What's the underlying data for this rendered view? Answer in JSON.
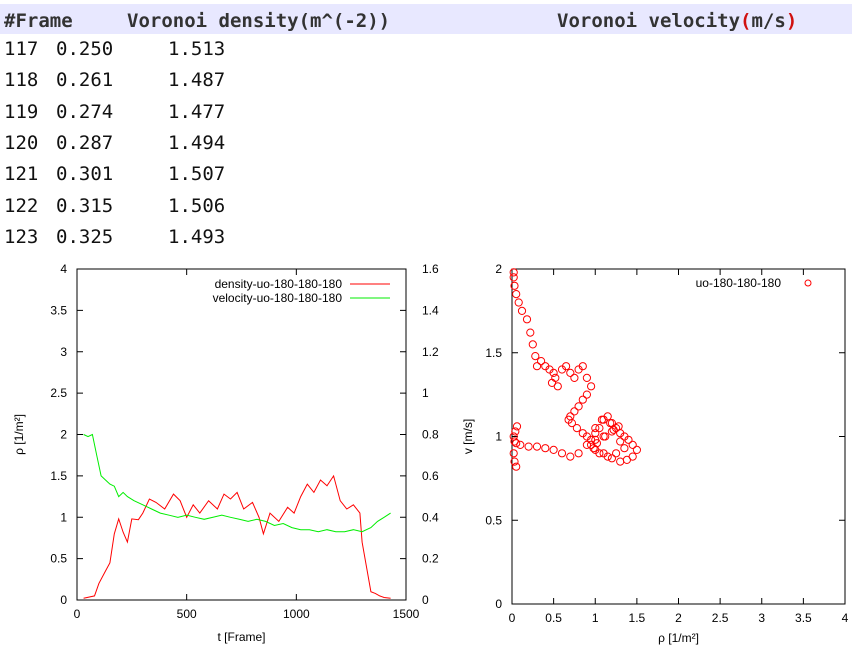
{
  "editor": {
    "header": {
      "frame": "#Frame",
      "density": "Voronoi density(m^(-2))",
      "velocity_prefix": "Voronoi velocity",
      "velocity_unit_open": "(",
      "velocity_unit": "m/s",
      "velocity_unit_close": ")"
    },
    "rows": [
      {
        "frame": "117",
        "density": "0.250",
        "velocity": "1.513"
      },
      {
        "frame": "118",
        "density": "0.261",
        "velocity": "1.487"
      },
      {
        "frame": "119",
        "density": "0.274",
        "velocity": "1.477"
      },
      {
        "frame": "120",
        "density": "0.287",
        "velocity": "1.494"
      },
      {
        "frame": "121",
        "density": "0.301",
        "velocity": "1.507"
      },
      {
        "frame": "122",
        "density": "0.315",
        "velocity": "1.506"
      },
      {
        "frame": "123",
        "density": "0.325",
        "velocity": "1.493"
      }
    ]
  },
  "chart_data": [
    {
      "type": "line",
      "xlabel": "t [Frame]",
      "ylabel": "ρ [1/m²]",
      "xlim": [
        0,
        1500
      ],
      "ylim": [
        0,
        4
      ],
      "y2lim": [
        0,
        1.6
      ],
      "xticks": [
        "0",
        "500",
        "1000",
        "1500"
      ],
      "yticks": [
        "0",
        "0.5",
        "1",
        "1.5",
        "2",
        "2.5",
        "3",
        "3.5",
        "4"
      ],
      "y2ticks": [
        "0",
        "0.2",
        "0.4",
        "0.6",
        "0.8",
        "1",
        "1.2",
        "1.4",
        "1.6"
      ],
      "legend_position": "top-right",
      "grid": false,
      "series": [
        {
          "name": "density-uo-180-180-180",
          "color": "#ff0000",
          "axis": "left",
          "x": [
            30,
            80,
            100,
            130,
            150,
            170,
            190,
            210,
            230,
            250,
            280,
            300,
            330,
            360,
            400,
            440,
            470,
            500,
            530,
            560,
            600,
            640,
            670,
            700,
            730,
            760,
            800,
            830,
            850,
            880,
            920,
            960,
            990,
            1020,
            1050,
            1080,
            1110,
            1140,
            1170,
            1200,
            1230,
            1260,
            1290,
            1300,
            1320,
            1340,
            1360,
            1380,
            1400,
            1430
          ],
          "y": [
            0.02,
            0.05,
            0.2,
            0.35,
            0.45,
            0.8,
            0.98,
            0.82,
            0.7,
            0.98,
            0.97,
            1.05,
            1.22,
            1.18,
            1.1,
            1.28,
            1.2,
            1.0,
            1.15,
            1.05,
            1.2,
            1.1,
            1.28,
            1.22,
            1.3,
            1.1,
            1.18,
            1.0,
            0.8,
            1.05,
            0.95,
            1.12,
            1.05,
            1.25,
            1.4,
            1.3,
            1.45,
            1.38,
            1.5,
            1.2,
            1.1,
            1.15,
            1.05,
            0.7,
            0.4,
            0.1,
            0.08,
            0.05,
            0.03,
            0.02
          ]
        },
        {
          "name": "velocity-uo-180-180-180",
          "color": "#00ee00",
          "axis": "right",
          "x": [
            30,
            50,
            70,
            90,
            110,
            130,
            150,
            170,
            190,
            210,
            230,
            260,
            300,
            340,
            380,
            420,
            460,
            500,
            540,
            580,
            620,
            660,
            700,
            740,
            780,
            820,
            860,
            900,
            940,
            980,
            1020,
            1060,
            1100,
            1140,
            1180,
            1220,
            1260,
            1300,
            1340,
            1370,
            1400,
            1430
          ],
          "y": [
            0.8,
            0.79,
            0.8,
            0.7,
            0.6,
            0.58,
            0.56,
            0.55,
            0.5,
            0.52,
            0.5,
            0.48,
            0.46,
            0.44,
            0.42,
            0.41,
            0.4,
            0.41,
            0.4,
            0.39,
            0.4,
            0.41,
            0.4,
            0.39,
            0.38,
            0.39,
            0.38,
            0.36,
            0.37,
            0.35,
            0.34,
            0.34,
            0.33,
            0.34,
            0.33,
            0.33,
            0.34,
            0.33,
            0.35,
            0.38,
            0.4,
            0.42
          ]
        }
      ]
    },
    {
      "type": "scatter",
      "xlabel": "ρ [1/m²]",
      "ylabel": "v [m/s]",
      "xlim": [
        0,
        4
      ],
      "ylim": [
        0,
        2
      ],
      "xticks": [
        "0",
        "0.5",
        "1",
        "1.5",
        "2",
        "2.5",
        "3",
        "3.5",
        "4"
      ],
      "yticks": [
        "0",
        "0.5",
        "1",
        "1.5",
        "2"
      ],
      "legend_position": "top-right",
      "grid": false,
      "series": [
        {
          "name": "uo-180-180-180",
          "color": "#ff0000",
          "marker": "circle-open",
          "x": [
            0.02,
            0.02,
            0.03,
            0.05,
            0.08,
            0.12,
            0.18,
            0.22,
            0.25,
            0.28,
            0.3,
            0.35,
            0.4,
            0.45,
            0.5,
            0.52,
            0.48,
            0.55,
            0.6,
            0.65,
            0.7,
            0.75,
            0.8,
            0.85,
            0.9,
            0.95,
            0.9,
            0.85,
            0.8,
            0.75,
            0.7,
            0.68,
            0.72,
            0.78,
            0.85,
            0.9,
            0.95,
            1.0,
            1.05,
            1.1,
            1.15,
            1.2,
            1.25,
            1.3,
            1.35,
            1.4,
            1.45,
            1.5,
            1.45,
            1.38,
            1.3,
            1.2,
            1.1,
            1.0,
            0.95,
            1.0,
            1.1,
            1.2,
            1.3,
            1.35,
            1.25,
            1.15,
            1.05,
            0.98,
            1.02,
            1.12,
            1.22,
            1.28,
            1.18,
            1.08,
            1.0,
            0.9,
            0.8,
            0.7,
            0.6,
            0.5,
            0.4,
            0.3,
            0.2,
            0.1,
            0.05,
            0.03,
            0.02,
            0.04,
            0.06,
            0.02,
            0.03,
            0.05
          ],
          "y": [
            1.98,
            1.95,
            1.9,
            1.85,
            1.8,
            1.75,
            1.7,
            1.62,
            1.55,
            1.48,
            1.42,
            1.45,
            1.42,
            1.4,
            1.38,
            1.35,
            1.32,
            1.3,
            1.4,
            1.42,
            1.38,
            1.35,
            1.4,
            1.42,
            1.35,
            1.3,
            1.25,
            1.22,
            1.18,
            1.15,
            1.12,
            1.1,
            1.08,
            1.05,
            1.02,
            1.0,
            0.98,
            1.02,
            1.05,
            1.1,
            1.12,
            1.08,
            1.05,
            1.02,
            1.0,
            0.98,
            0.95,
            0.92,
            0.88,
            0.86,
            0.85,
            0.87,
            0.9,
            0.92,
            0.95,
            0.98,
            1.0,
            1.03,
            0.97,
            0.93,
            0.9,
            0.88,
            0.9,
            0.93,
            0.96,
            1.0,
            1.04,
            1.06,
            1.08,
            1.1,
            1.05,
            0.95,
            0.9,
            0.88,
            0.9,
            0.92,
            0.93,
            0.94,
            0.94,
            0.95,
            0.96,
            0.97,
            1.0,
            1.03,
            1.06,
            0.9,
            0.85,
            0.82
          ]
        }
      ]
    }
  ]
}
